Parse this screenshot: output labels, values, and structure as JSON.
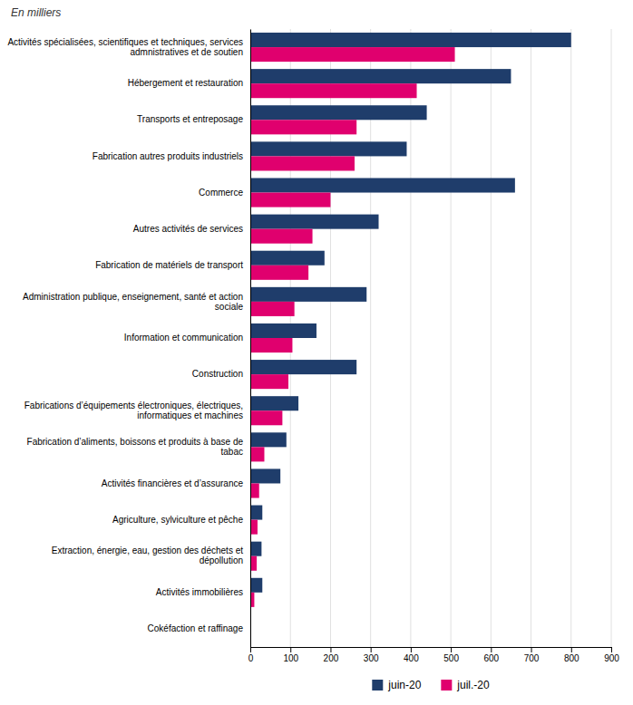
{
  "chart_data": {
    "type": "bar",
    "orientation": "horizontal",
    "subtitle": "En milliers",
    "categories": [
      "Activités spécialisées, scientifiques et techniques, services\nadmnistratives et de soutien",
      "Hébergement et restauration",
      "Transports et entreposage",
      "Fabrication autres produits industriels",
      "Commerce",
      "Autres activités de services",
      "Fabrication de matériels de transport",
      "Administration publique, enseignement, santé et action\nsociale",
      "Information et communication",
      "Construction",
      "Fabrications d’équipements électroniques, électriques,\ninformatiques et machines",
      "Fabrication d’aliments, boissons et produits à base de\ntabac",
      "Activités financières et d’assurance",
      "Agriculture, sylviculture et pêche",
      "Extraction, énergie, eau, gestion des déchets et\ndépollution",
      "Activités immobilières",
      "Cokéfaction et raffinage"
    ],
    "series": [
      {
        "name": "juin-20",
        "color": "#1f3d6b",
        "values": [
          800,
          650,
          440,
          390,
          660,
          320,
          185,
          290,
          165,
          265,
          120,
          90,
          75,
          30,
          28,
          30,
          2
        ]
      },
      {
        "name": "juil.-20",
        "color": "#e0006e",
        "values": [
          510,
          415,
          265,
          260,
          200,
          155,
          145,
          110,
          105,
          95,
          80,
          35,
          22,
          18,
          16,
          10,
          1
        ]
      }
    ],
    "xlim": [
      0,
      900
    ],
    "xticks": [
      0,
      100,
      200,
      300,
      400,
      500,
      600,
      700,
      800,
      900
    ],
    "grid": true,
    "legend": "bottom"
  }
}
